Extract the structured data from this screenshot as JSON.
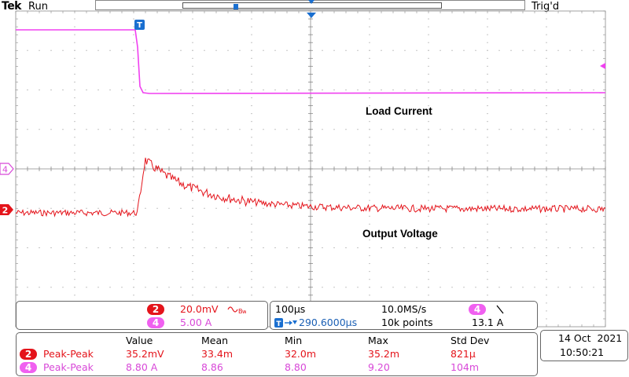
{
  "header": {
    "brand": "Tek",
    "run_state": "Run",
    "trigger_state": "Trig'd"
  },
  "plot": {
    "trigger_marker": "T",
    "labels": {
      "load_current": "Load Current",
      "output_voltage": "Output Voltage"
    },
    "channel_markers": {
      "ch4": "4",
      "ch2": "2"
    },
    "colors": {
      "ch2": "#e4141b",
      "ch4": "#f040f0",
      "grid": "#8a8a8a",
      "trigger": "#1a6fd0"
    }
  },
  "vertical_panel": {
    "ch2": {
      "num": "2",
      "scale": "20.0mV",
      "coupling_icon": "bandwidth-limit-icon"
    },
    "ch4": {
      "num": "4",
      "scale": "5.00 A"
    }
  },
  "horizontal_panel": {
    "timebase": "100µs",
    "sample_rate": "10.0MS/s",
    "trigger_source": "4",
    "trigger_slope_icon": "falling-edge-icon",
    "trigger_position": "290.6000µs",
    "record_length": "10k points",
    "trigger_level": "13.1 A"
  },
  "measurements": {
    "headers": [
      "Value",
      "Mean",
      "Min",
      "Max",
      "Std Dev"
    ],
    "rows": [
      {
        "ch": "2",
        "name": "Peak-Peak",
        "value": "35.2mV",
        "mean": "33.4m",
        "min": "32.0m",
        "max": "35.2m",
        "std": "821µ"
      },
      {
        "ch": "4",
        "name": "Peak-Peak",
        "value": "8.80 A",
        "mean": "8.86",
        "min": "8.80",
        "max": "9.20",
        "std": "104m"
      }
    ]
  },
  "datetime": {
    "date": "14 Oct  2021",
    "time": "10:50:21"
  }
}
